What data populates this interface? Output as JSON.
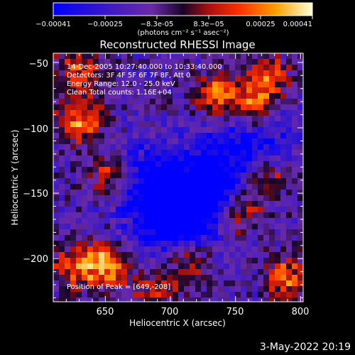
{
  "colorbar": {
    "tick_labels": [
      "-0.00041",
      "-0.00025",
      "-8.3e-05",
      "8.3e-05",
      "0.00025",
      "0.00041"
    ],
    "unit_label": "(photons cm⁻² s⁻¹ asec⁻²)",
    "range": [
      -0.00041,
      0.00041
    ]
  },
  "chart_data": {
    "type": "heatmap",
    "title": "Reconstructed RHESSI Image",
    "xlabel": "Heliocentric X (arcsec)",
    "ylabel": "Heliocentric Y (arcsec)",
    "xlim": [
      610,
      802
    ],
    "ylim": [
      -233,
      -43
    ],
    "x_ticks": [
      650,
      700,
      750,
      800
    ],
    "y_ticks": [
      -50,
      -100,
      -150,
      -200
    ],
    "annotations": [
      "14-Dec-2005 10:27:40.000 to 10:33:40.000",
      "Detectors: 3F 4F 5F 6F 7F 8F, Att 0",
      "Energy Range: 12.0 - 25.0 keV",
      "Clean     Total counts: 1.16E+04"
    ],
    "peak_label": "Position of Peak = [649,-208]",
    "peak": [
      649,
      -208
    ],
    "bright_sources": [
      {
        "x": 630,
        "y": -95,
        "value": 0.00039
      },
      {
        "x": 653,
        "y": -138,
        "value": 0.00033
      },
      {
        "x": 651,
        "y": -205,
        "value": 0.00041
      },
      {
        "x": 627,
        "y": -205,
        "value": 0.0003
      },
      {
        "x": 630,
        "y": -55,
        "value": 0.00028
      },
      {
        "x": 735,
        "y": -75,
        "value": 0.00036
      },
      {
        "x": 763,
        "y": -85,
        "value": 0.00038
      },
      {
        "x": 775,
        "y": -62,
        "value": 0.00032
      },
      {
        "x": 772,
        "y": -140,
        "value": 0.00031
      },
      {
        "x": 752,
        "y": -165,
        "value": 0.00035
      },
      {
        "x": 790,
        "y": -215,
        "value": 0.00036
      },
      {
        "x": 715,
        "y": -205,
        "value": 0.00028
      },
      {
        "x": 690,
        "y": -225,
        "value": 0.00025
      }
    ],
    "dark_regions": [
      {
        "x": 728,
        "y": -150,
        "value": -0.00041
      },
      {
        "x": 683,
        "y": -143,
        "value": -0.0003
      },
      {
        "x": 760,
        "y": -110,
        "value": -0.00027
      },
      {
        "x": 700,
        "y": -175,
        "value": -0.00022
      }
    ]
  },
  "footer": {
    "date_stamp": "3-May-2022 20:19"
  }
}
